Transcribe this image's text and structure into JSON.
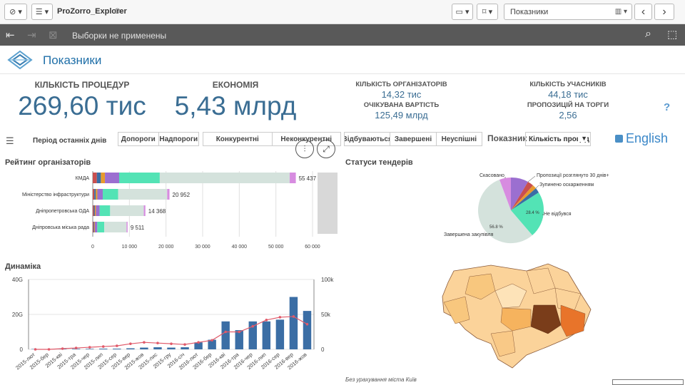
{
  "toolbar": {
    "app_name": "ProZorro_Explorer",
    "sheet_select": "Показники"
  },
  "selections": {
    "status_text": "Выборки не применены"
  },
  "sheet": {
    "title": "Показники"
  },
  "kpis": {
    "procedures": {
      "title": "КІЛЬКІСТЬ ПРОЦЕДУР",
      "value": "269,60 тис"
    },
    "economy": {
      "title": "ЕКОНОМІЯ",
      "value": "5,43 млрд"
    },
    "organizers": {
      "title": "КІЛЬКІСТЬ ОРГАНІЗАТОРІВ",
      "value": "14,32 тис"
    },
    "expected": {
      "title": "ОЧІКУВАНА ВАРТІСТЬ",
      "value": "125,49 млрд"
    },
    "participants": {
      "title": "КІЛЬКІСТЬ УЧАСНИКІВ",
      "value": "44,18 тис"
    },
    "proposals": {
      "title": "ПРОПОЗИЦІЙ НА ТОРГИ",
      "value": "2,56"
    },
    "help": "?"
  },
  "filters": {
    "period_label": "Період останніх днів",
    "group1": [
      "Допороги",
      "Надпороги"
    ],
    "group2": [
      "Конкурентні",
      "Неконкурентні"
    ],
    "group3": [
      "Відбуваються",
      "Завершені",
      "Неуспішні"
    ],
    "indicator_label": "Показник",
    "indicator_value": "Кількість процед",
    "language": "English"
  },
  "ranking": {
    "title": "Рейтинг організаторів",
    "rows": [
      {
        "name": "КМДА",
        "value": 55437,
        "label": "55 437"
      },
      {
        "name": "Міністерство інфраструктури",
        "value": 20952,
        "label": "20 952"
      },
      {
        "name": "Дніпропетровська ОДА",
        "value": 14368,
        "label": "14 368"
      },
      {
        "name": "Дніпровська міська рада",
        "value": 9511,
        "label": "9 511"
      }
    ],
    "ticks": [
      "0",
      "10 000",
      "20 000",
      "30 000",
      "40 000",
      "50 000",
      "60 000"
    ]
  },
  "statuses": {
    "title": "Статуси тендерів",
    "labels": {
      "cancelled": "Скасовано",
      "proposals": "Пропозиції розглянуто 30 днів+",
      "stopped": "Зупинено оскарженням",
      "not_held": "Не відбувся",
      "completed": "Завершена закупівля",
      "pct_not_held": "28.4 %",
      "pct_completed": "56.8 %"
    }
  },
  "dynamics": {
    "title": "Динаміка",
    "left_ticks": [
      "0",
      "20G",
      "40G"
    ],
    "right_ticks": [
      "0",
      "50k",
      "100k"
    ],
    "months": [
      "2015-лют",
      "2015-бер",
      "2015-кві",
      "2015-тра",
      "2015-чер",
      "2015-лип",
      "2015-сер",
      "2015-вер",
      "2015-жов",
      "2015-лис",
      "2015-гру",
      "2016-січ",
      "2016-лют",
      "2016-бер",
      "2016-кві",
      "2016-тра",
      "2016-чер",
      "2016-лип",
      "2016-сер",
      "2016-вер",
      "2016-жов"
    ]
  },
  "chart_data": {
    "type": "bar",
    "title": "Динаміка",
    "categories": [
      "2015-лют",
      "2015-бер",
      "2015-кві",
      "2015-тра",
      "2015-чер",
      "2015-лип",
      "2015-сер",
      "2015-вер",
      "2015-жов",
      "2015-лис",
      "2015-гру",
      "2016-січ",
      "2016-лют",
      "2016-бер",
      "2016-кві",
      "2016-тра",
      "2016-чер",
      "2016-лип",
      "2016-сер",
      "2016-вер",
      "2016-жов"
    ],
    "series": [
      {
        "type": "bar",
        "axis": "left",
        "values": [
          0.2,
          0.2,
          0.2,
          0.3,
          0.3,
          0.4,
          0.4,
          0.6,
          1.0,
          1.2,
          1.0,
          1.2,
          4.0,
          5.5,
          16.0,
          11.0,
          16.0,
          16.0,
          17.0,
          30.0,
          22.0
        ]
      },
      {
        "type": "line",
        "axis": "right",
        "values": [
          0,
          0,
          1000,
          2000,
          3000,
          4000,
          5000,
          8000,
          10000,
          9000,
          8000,
          7000,
          10000,
          13000,
          25000,
          25000,
          33000,
          42000,
          46000,
          47000,
          36000
        ]
      }
    ],
    "ylim_left": [
      0,
      40
    ],
    "ylim_right": [
      0,
      100000
    ],
    "colors": {
      "bar": "#3b6ea5",
      "line": "#e05a6a"
    }
  },
  "map": {
    "caption": "Без урахування міста Київ"
  },
  "colors": {
    "accent": "#3a6d93",
    "brand": "#1f6fa8"
  }
}
